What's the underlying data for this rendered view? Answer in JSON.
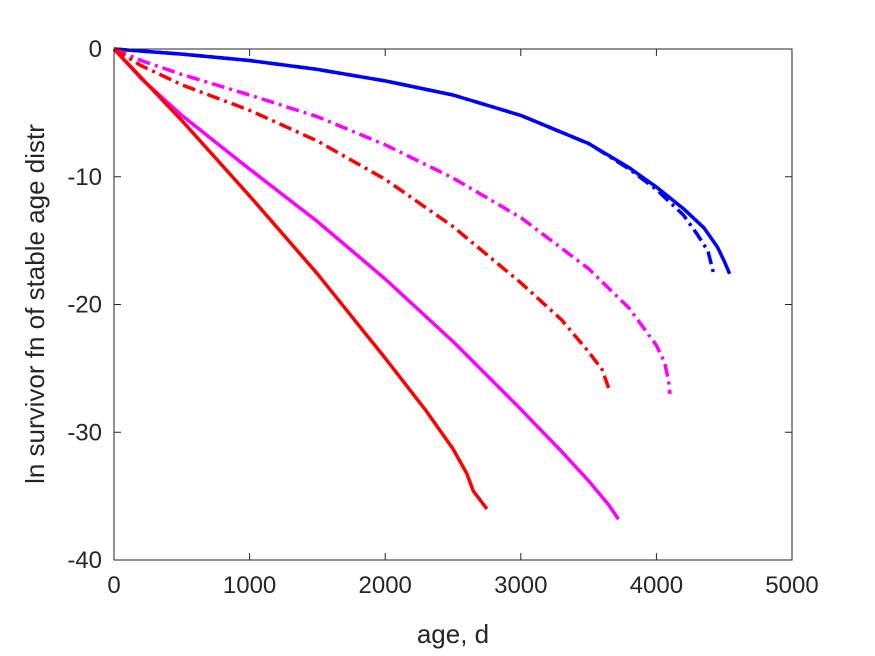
{
  "chart_data": {
    "type": "line",
    "xlabel": "age, d",
    "ylabel": "ln survivor fn of stable age distr",
    "xlim": [
      0,
      5000
    ],
    "ylim": [
      -40,
      0
    ],
    "xticks": [
      0,
      1000,
      2000,
      3000,
      4000,
      5000
    ],
    "yticks": [
      0,
      -10,
      -20,
      -30,
      -40
    ],
    "xtick_labels": [
      "0",
      "1000",
      "2000",
      "3000",
      "4000",
      "5000"
    ],
    "ytick_labels": [
      "0",
      "-10",
      "-20",
      "-30",
      "-40"
    ],
    "grid": false,
    "series": [
      {
        "color": "#0000ff",
        "dash": "solid",
        "x": [
          0,
          500,
          1000,
          1500,
          2000,
          2500,
          3000,
          3500,
          3800,
          4000,
          4200,
          4350,
          4450,
          4500,
          4540
        ],
        "y": [
          0,
          -0.4,
          -0.9,
          -1.6,
          -2.5,
          -3.6,
          -5.2,
          -7.4,
          -9.3,
          -10.8,
          -12.5,
          -14.0,
          -15.5,
          -16.6,
          -17.6
        ]
      },
      {
        "color": "#0000ff",
        "dash": "dashdot",
        "x": [
          0,
          500,
          1000,
          1500,
          2000,
          2500,
          3000,
          3500,
          3800,
          4000,
          4200,
          4300,
          4380,
          4420
        ],
        "y": [
          0,
          -0.4,
          -0.9,
          -1.6,
          -2.5,
          -3.6,
          -5.2,
          -7.4,
          -9.4,
          -11.0,
          -13.0,
          -14.5,
          -15.8,
          -17.5
        ]
      },
      {
        "color": "#ff00ff",
        "dash": "dashdot",
        "x": [
          0,
          200,
          500,
          1000,
          1500,
          2000,
          2500,
          3000,
          3500,
          3800,
          4000,
          4060,
          4090,
          4100
        ],
        "y": [
          0,
          -0.9,
          -2.0,
          -3.6,
          -5.3,
          -7.5,
          -10.1,
          -13.2,
          -17.2,
          -20.3,
          -23.2,
          -24.5,
          -26.0,
          -27.0
        ]
      },
      {
        "color": "#ff0000",
        "dash": "dashdot",
        "x": [
          0,
          200,
          500,
          1000,
          1500,
          2000,
          2500,
          3000,
          3300,
          3500,
          3600,
          3650
        ],
        "y": [
          0,
          -1.3,
          -2.8,
          -4.8,
          -7.2,
          -10.2,
          -13.9,
          -18.3,
          -21.2,
          -23.7,
          -25.1,
          -26.6
        ]
      },
      {
        "color": "#ff00ff",
        "dash": "solid",
        "x": [
          0,
          200,
          500,
          1000,
          1500,
          2000,
          2500,
          3000,
          3300,
          3500,
          3650,
          3720
        ],
        "y": [
          0,
          -2.3,
          -5.2,
          -9.4,
          -13.5,
          -18.0,
          -22.9,
          -28.2,
          -31.5,
          -33.8,
          -35.7,
          -36.8
        ]
      },
      {
        "color": "#ff0000",
        "dash": "solid",
        "x": [
          0,
          500,
          1000,
          1500,
          2000,
          2300,
          2500,
          2600,
          2650,
          2700,
          2750
        ],
        "y": [
          0,
          -5.6,
          -11.5,
          -17.6,
          -24.2,
          -28.3,
          -31.3,
          -33.2,
          -34.6,
          -35.3,
          -36.0
        ]
      }
    ]
  }
}
